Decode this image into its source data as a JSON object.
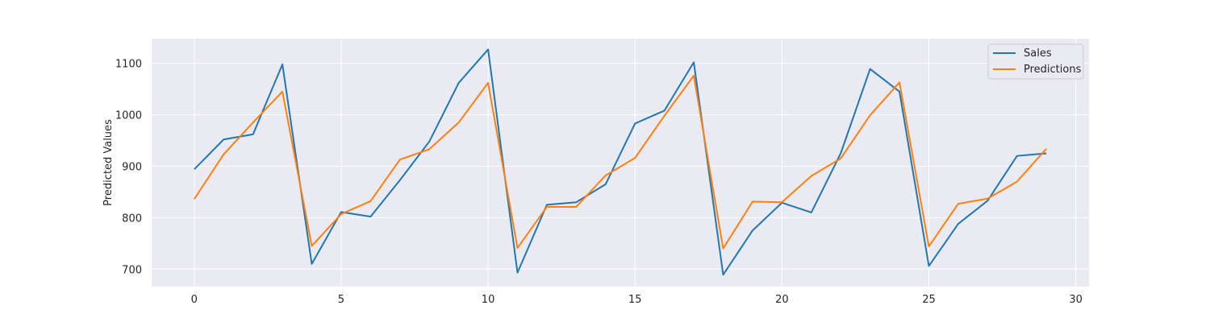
{
  "chart_data": {
    "type": "line",
    "title": "",
    "xlabel": "",
    "ylabel": "Predicted Values",
    "xlim": [
      -1.45,
      30.45
    ],
    "ylim": [
      666,
      1148
    ],
    "xticks": [
      0,
      5,
      10,
      15,
      20,
      25,
      30
    ],
    "yticks": [
      700,
      800,
      900,
      1000,
      1100
    ],
    "grid": true,
    "legend_position": "upper right",
    "x": [
      0,
      1,
      2,
      3,
      4,
      5,
      6,
      7,
      8,
      9,
      10,
      11,
      12,
      13,
      14,
      15,
      16,
      17,
      18,
      19,
      20,
      21,
      22,
      23,
      24,
      25,
      26,
      27,
      28,
      29
    ],
    "series": [
      {
        "name": "Sales",
        "color": "#1f77b4",
        "values": [
          894,
          952,
          962,
          1098,
          710,
          811,
          802,
          873,
          948,
          1062,
          1127,
          693,
          825,
          830,
          865,
          983,
          1008,
          1102,
          689,
          775,
          829,
          810,
          925,
          1089,
          1045,
          706,
          788,
          833,
          920,
          925
        ]
      },
      {
        "name": "Predictions",
        "color": "#ff7f0e",
        "values": [
          836,
          923,
          985,
          1045,
          745,
          807,
          832,
          913,
          933,
          985,
          1062,
          741,
          821,
          821,
          882,
          916,
          998,
          1076,
          740,
          831,
          830,
          881,
          915,
          999,
          1063,
          744,
          827,
          837,
          870,
          934
        ]
      }
    ]
  },
  "colors": {
    "plot_background": "#eaeaf2",
    "grid": "#ffffff",
    "text": "#262626"
  }
}
